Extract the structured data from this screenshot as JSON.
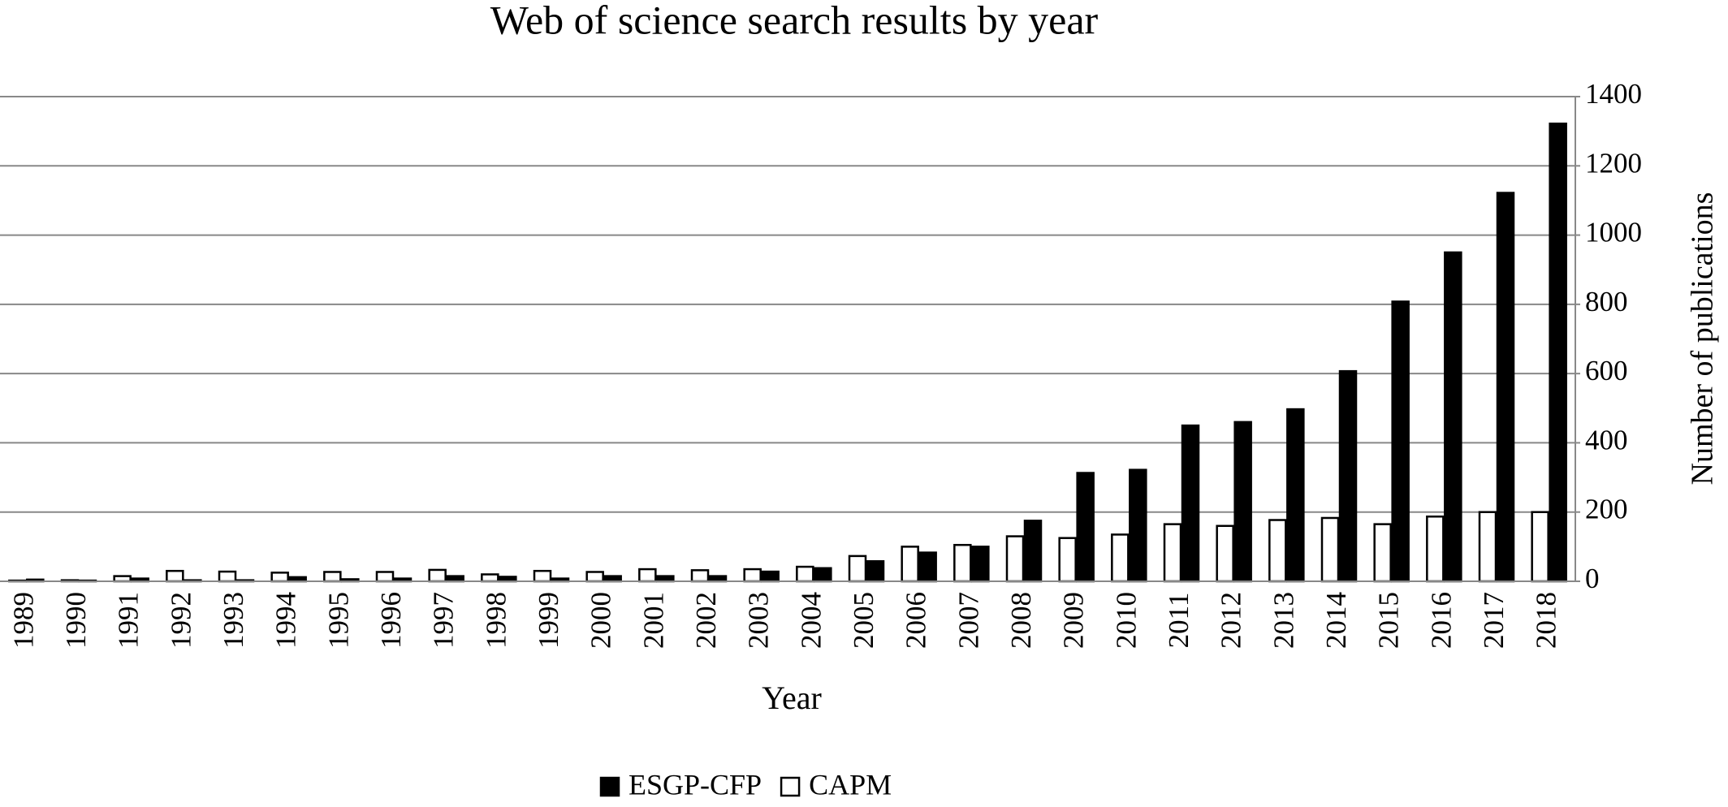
{
  "chart_data": {
    "type": "bar",
    "title": "Web of science search results by year",
    "x_label": "Year",
    "y_label": "Number of publications",
    "categories": [
      "1989",
      "1990",
      "1991",
      "1992",
      "1993",
      "1994",
      "1995",
      "1996",
      "1997",
      "1998",
      "1999",
      "2000",
      "2001",
      "2002",
      "2003",
      "2004",
      "2005",
      "2006",
      "2007",
      "2008",
      "2009",
      "2010",
      "2011",
      "2012",
      "2013",
      "2014",
      "2015",
      "2016",
      "2017",
      "2018"
    ],
    "series": [
      {
        "name": "ESGP-CFP",
        "color": "#000000",
        "values": [
          5,
          2,
          8,
          3,
          3,
          12,
          6,
          8,
          15,
          13,
          8,
          15,
          15,
          15,
          28,
          38,
          58,
          83,
          100,
          175,
          313,
          322,
          450,
          460,
          497,
          607,
          808,
          950,
          1122,
          1322
        ]
      },
      {
        "name": "CAPM",
        "color": "#ffffff",
        "values": [
          2,
          3,
          15,
          30,
          28,
          25,
          27,
          27,
          33,
          20,
          30,
          27,
          35,
          32,
          35,
          42,
          73,
          100,
          105,
          130,
          125,
          135,
          165,
          160,
          177,
          183,
          165,
          187,
          200,
          200
        ]
      }
    ],
    "ylim": [
      0,
      1400
    ],
    "yticks": [
      0,
      200,
      400,
      600,
      800,
      1000,
      1200,
      1400
    ],
    "y_axis_side": "right",
    "grid": true,
    "legend": "bottom"
  }
}
